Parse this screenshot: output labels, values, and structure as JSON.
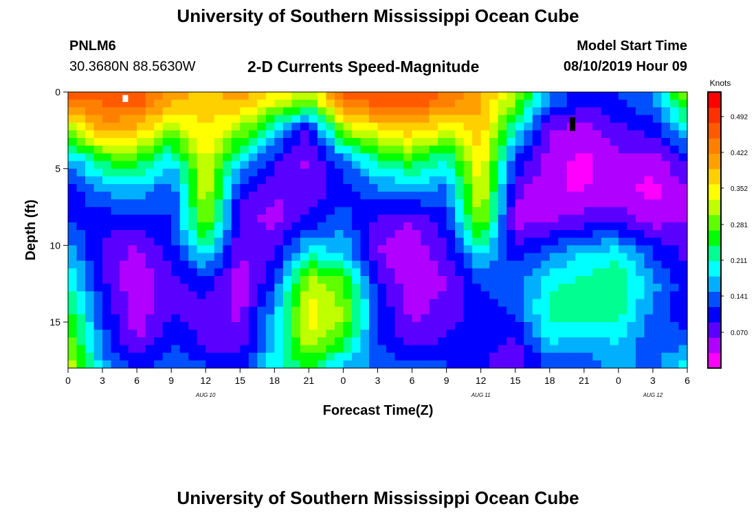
{
  "header": {
    "top_title": "University of Southern Mississippi Ocean Cube",
    "bottom_title": "University of Southern Mississippi Ocean Cube",
    "station_id": "PNLM6",
    "coordinates": "30.3680N 88.5630W",
    "plot_title": "2-D Currents Speed-Magnitude",
    "model_start_label": "Model Start Time",
    "model_start_value": "08/10/2019 Hour 09"
  },
  "colors": {
    "ramp": [
      "#ff00ff",
      "#b000ff",
      "#5a00ff",
      "#0000ff",
      "#0050ff",
      "#00b0ff",
      "#00ffff",
      "#00ff90",
      "#00ff00",
      "#60ff00",
      "#c0ff00",
      "#ffff00",
      "#ffd000",
      "#ffa000",
      "#ff8000",
      "#ff5a00",
      "#ff3000",
      "#ff0000"
    ],
    "missing": "#ffffff",
    "flagged": "#000000"
  },
  "chart_data": {
    "type": "heatmap",
    "title": "2-D Currents Speed-Magnitude",
    "xlabel": "Forecast Time(Z)",
    "ylabel": "Depth (ft)",
    "units": "Knots",
    "x_hours_range": [
      0,
      54
    ],
    "x_tick_hours": [
      0,
      3,
      6,
      9,
      12,
      15,
      18,
      21,
      24,
      27,
      30,
      33,
      36,
      39,
      42,
      45,
      48,
      51,
      54
    ],
    "x_tick_labels": [
      "0",
      "3",
      "6",
      "9",
      "12",
      "15",
      "18",
      "21",
      "0",
      "3",
      "6",
      "9",
      "12",
      "15",
      "18",
      "21",
      "0",
      "3",
      "6"
    ],
    "date_labels": [
      {
        "hour": 12,
        "text": "AUG 10"
      },
      {
        "hour": 36,
        "text": "AUG 11"
      },
      {
        "hour": 51,
        "text": "AUG 12"
      }
    ],
    "y_range_ft": [
      0,
      18
    ],
    "y_ticks_ft": [
      0,
      5,
      10,
      15
    ],
    "y_tick_labels": [
      "0",
      "5",
      "10",
      "15"
    ],
    "colorbar": {
      "label": "Knots",
      "range": [
        0,
        0.54
      ],
      "tick_values": [
        0.07,
        0.141,
        0.211,
        0.281,
        0.352,
        0.422,
        0.492
      ],
      "tick_labels": [
        "0.070",
        "0.141",
        "0.211",
        "0.281",
        "0.352",
        "0.422",
        "0.492"
      ]
    },
    "hours": [
      0,
      3,
      6,
      9,
      12,
      15,
      18,
      21,
      24,
      27,
      30,
      33,
      36,
      39,
      42,
      45,
      48,
      51,
      54
    ],
    "depth_rows_ft": [
      0.5,
      2.5,
      4.5,
      6.5,
      8.5,
      10.5,
      12.5,
      14.5,
      16.5,
      17.5
    ],
    "speed_grid_knots": [
      [
        0.45,
        0.46,
        0.48,
        0.4,
        0.38,
        0.4,
        0.35,
        0.3,
        0.45,
        0.47,
        0.48,
        0.44,
        0.4,
        0.3,
        0.15,
        0.1,
        0.12,
        0.15,
        0.3
      ],
      [
        0.3,
        0.4,
        0.38,
        0.3,
        0.36,
        0.3,
        0.18,
        0.08,
        0.3,
        0.35,
        0.38,
        0.33,
        0.38,
        0.2,
        0.06,
        0.04,
        0.08,
        0.1,
        0.18
      ],
      [
        0.15,
        0.25,
        0.26,
        0.18,
        0.34,
        0.18,
        0.1,
        0.05,
        0.14,
        0.22,
        0.26,
        0.2,
        0.36,
        0.12,
        0.04,
        0.02,
        0.05,
        0.04,
        0.1
      ],
      [
        0.1,
        0.15,
        0.17,
        0.12,
        0.33,
        0.1,
        0.06,
        0.07,
        0.1,
        0.14,
        0.15,
        0.14,
        0.34,
        0.07,
        0.03,
        0.03,
        0.04,
        0.02,
        0.06
      ],
      [
        0.12,
        0.1,
        0.1,
        0.12,
        0.3,
        0.07,
        0.05,
        0.1,
        0.14,
        0.08,
        0.06,
        0.11,
        0.3,
        0.05,
        0.06,
        0.08,
        0.08,
        0.05,
        0.06
      ],
      [
        0.17,
        0.08,
        0.05,
        0.1,
        0.2,
        0.06,
        0.09,
        0.2,
        0.18,
        0.06,
        0.03,
        0.08,
        0.2,
        0.1,
        0.14,
        0.18,
        0.2,
        0.12,
        0.08
      ],
      [
        0.22,
        0.1,
        0.03,
        0.08,
        0.1,
        0.04,
        0.12,
        0.32,
        0.28,
        0.1,
        0.04,
        0.06,
        0.12,
        0.14,
        0.2,
        0.22,
        0.24,
        0.16,
        0.1
      ],
      [
        0.26,
        0.12,
        0.04,
        0.09,
        0.08,
        0.05,
        0.17,
        0.35,
        0.3,
        0.12,
        0.05,
        0.08,
        0.1,
        0.12,
        0.22,
        0.24,
        0.22,
        0.14,
        0.1
      ],
      [
        0.3,
        0.14,
        0.06,
        0.12,
        0.08,
        0.07,
        0.18,
        0.32,
        0.25,
        0.12,
        0.08,
        0.1,
        0.1,
        0.08,
        0.18,
        0.16,
        0.18,
        0.12,
        0.14
      ],
      [
        0.32,
        0.16,
        0.1,
        0.14,
        0.12,
        0.1,
        0.2,
        0.26,
        0.18,
        0.14,
        0.12,
        0.12,
        0.1,
        0.06,
        0.14,
        0.14,
        0.16,
        0.14,
        0.2
      ]
    ],
    "missing_cells": [
      {
        "hour": 5,
        "depth_ft": 0.2
      }
    ],
    "flagged_cells": [
      {
        "hour": 44,
        "depth_ft": 2.0
      }
    ]
  }
}
